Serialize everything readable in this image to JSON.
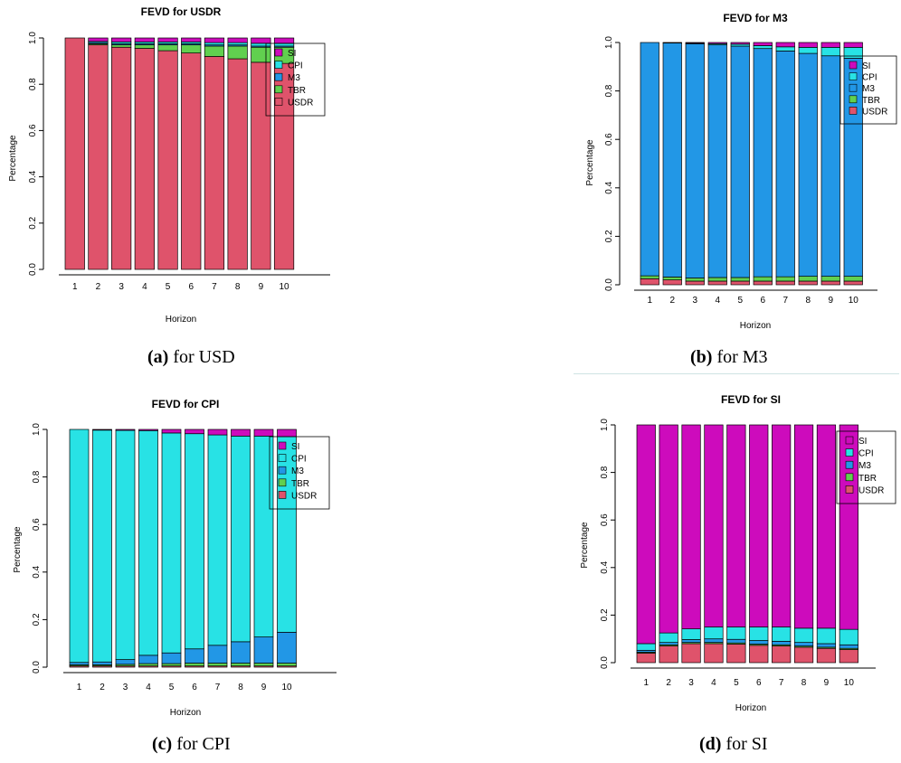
{
  "colors": {
    "USDR": "#df536b",
    "TBR": "#61d04f",
    "M3": "#2297e6",
    "CPI": "#28e2e5",
    "SI": "#cd0bbc"
  },
  "series_order": [
    "USDR",
    "TBR",
    "M3",
    "CPI",
    "SI"
  ],
  "legend_order": [
    "SI",
    "CPI",
    "M3",
    "TBR",
    "USDR"
  ],
  "chart_data": [
    {
      "type": "bar",
      "stacked": true,
      "title": "FEVD for USDR",
      "xlabel": "Horizon",
      "ylabel": "Percentage",
      "ylim": [
        0,
        1
      ],
      "yticks": [
        "0.0",
        "0.2",
        "0.4",
        "0.6",
        "0.8",
        "1.0"
      ],
      "categories": [
        "1",
        "2",
        "3",
        "4",
        "5",
        "6",
        "7",
        "8",
        "9",
        "10"
      ],
      "legend_position": "top-right",
      "series": [
        {
          "name": "USDR",
          "values": [
            1.0,
            0.97,
            0.96,
            0.955,
            0.945,
            0.935,
            0.92,
            0.91,
            0.895,
            0.89
          ]
        },
        {
          "name": "TBR",
          "values": [
            0.0,
            0.005,
            0.01,
            0.015,
            0.025,
            0.035,
            0.045,
            0.055,
            0.065,
            0.07
          ]
        },
        {
          "name": "M3",
          "values": [
            0.0,
            0.005,
            0.005,
            0.005,
            0.005,
            0.005,
            0.005,
            0.005,
            0.005,
            0.005
          ]
        },
        {
          "name": "CPI",
          "values": [
            0.0,
            0.005,
            0.008,
            0.008,
            0.008,
            0.008,
            0.01,
            0.01,
            0.012,
            0.012
          ]
        },
        {
          "name": "SI",
          "values": [
            0.0,
            0.015,
            0.017,
            0.017,
            0.017,
            0.017,
            0.02,
            0.02,
            0.023,
            0.023
          ]
        }
      ]
    },
    {
      "type": "bar",
      "stacked": true,
      "title": "FEVD for M3",
      "xlabel": "Horizon",
      "ylabel": "Percentage",
      "ylim": [
        0,
        1
      ],
      "yticks": [
        "0.0",
        "0.2",
        "0.4",
        "0.6",
        "0.8",
        "1.0"
      ],
      "categories": [
        "1",
        "2",
        "3",
        "4",
        "5",
        "6",
        "7",
        "8",
        "9",
        "10"
      ],
      "legend_position": "top-right",
      "series": [
        {
          "name": "USDR",
          "values": [
            0.025,
            0.02,
            0.015,
            0.015,
            0.015,
            0.015,
            0.015,
            0.015,
            0.015,
            0.015
          ]
        },
        {
          "name": "TBR",
          "values": [
            0.012,
            0.012,
            0.013,
            0.015,
            0.015,
            0.018,
            0.018,
            0.02,
            0.02,
            0.02
          ]
        },
        {
          "name": "M3",
          "values": [
            0.963,
            0.966,
            0.967,
            0.96,
            0.955,
            0.942,
            0.932,
            0.92,
            0.91,
            0.9
          ]
        },
        {
          "name": "CPI",
          "values": [
            0.0,
            0.001,
            0.002,
            0.005,
            0.008,
            0.012,
            0.017,
            0.025,
            0.035,
            0.045
          ]
        },
        {
          "name": "SI",
          "values": [
            0.0,
            0.001,
            0.003,
            0.005,
            0.007,
            0.013,
            0.018,
            0.02,
            0.02,
            0.02
          ]
        }
      ]
    },
    {
      "type": "bar",
      "stacked": true,
      "title": "FEVD for CPI",
      "xlabel": "Horizon",
      "ylabel": "Percentage",
      "ylim": [
        0,
        1
      ],
      "yticks": [
        "0.0",
        "0.2",
        "0.4",
        "0.6",
        "0.8",
        "1.0"
      ],
      "categories": [
        "1",
        "2",
        "3",
        "4",
        "5",
        "6",
        "7",
        "8",
        "9",
        "10"
      ],
      "legend_position": "top-right",
      "series": [
        {
          "name": "USDR",
          "values": [
            0.005,
            0.005,
            0.005,
            0.005,
            0.005,
            0.005,
            0.005,
            0.005,
            0.005,
            0.005
          ]
        },
        {
          "name": "TBR",
          "values": [
            0.005,
            0.005,
            0.007,
            0.01,
            0.01,
            0.012,
            0.012,
            0.012,
            0.012,
            0.012
          ]
        },
        {
          "name": "M3",
          "values": [
            0.01,
            0.012,
            0.02,
            0.035,
            0.045,
            0.06,
            0.075,
            0.09,
            0.11,
            0.13
          ]
        },
        {
          "name": "CPI",
          "values": [
            0.98,
            0.975,
            0.964,
            0.945,
            0.925,
            0.905,
            0.885,
            0.865,
            0.845,
            0.823
          ]
        },
        {
          "name": "SI",
          "values": [
            0.0,
            0.003,
            0.004,
            0.005,
            0.015,
            0.018,
            0.023,
            0.028,
            0.028,
            0.03
          ]
        }
      ]
    },
    {
      "type": "bar",
      "stacked": true,
      "title": "FEVD for SI",
      "xlabel": "Horizon",
      "ylabel": "Percentage",
      "ylim": [
        0,
        1
      ],
      "yticks": [
        "0.0",
        "0.2",
        "0.4",
        "0.6",
        "0.8",
        "1.0"
      ],
      "categories": [
        "1",
        "2",
        "3",
        "4",
        "5",
        "6",
        "7",
        "8",
        "9",
        "10"
      ],
      "legend_position": "top-right",
      "series": [
        {
          "name": "USDR",
          "values": [
            0.04,
            0.07,
            0.08,
            0.08,
            0.078,
            0.073,
            0.07,
            0.065,
            0.06,
            0.055
          ]
        },
        {
          "name": "TBR",
          "values": [
            0.004,
            0.005,
            0.005,
            0.005,
            0.005,
            0.005,
            0.005,
            0.005,
            0.005,
            0.005
          ]
        },
        {
          "name": "M3",
          "values": [
            0.008,
            0.01,
            0.012,
            0.015,
            0.015,
            0.015,
            0.015,
            0.015,
            0.015,
            0.015
          ]
        },
        {
          "name": "CPI",
          "values": [
            0.028,
            0.04,
            0.045,
            0.05,
            0.052,
            0.057,
            0.06,
            0.06,
            0.065,
            0.065
          ]
        },
        {
          "name": "SI",
          "values": [
            0.92,
            0.875,
            0.858,
            0.85,
            0.85,
            0.85,
            0.85,
            0.855,
            0.855,
            0.86
          ]
        }
      ]
    }
  ],
  "captions": [
    {
      "label": "(a)",
      "text": " for USD"
    },
    {
      "label": "(b)",
      "text": " for M3"
    },
    {
      "label": "(c)",
      "text": " for CPI"
    },
    {
      "label": "(d)",
      "text": " for SI"
    }
  ]
}
